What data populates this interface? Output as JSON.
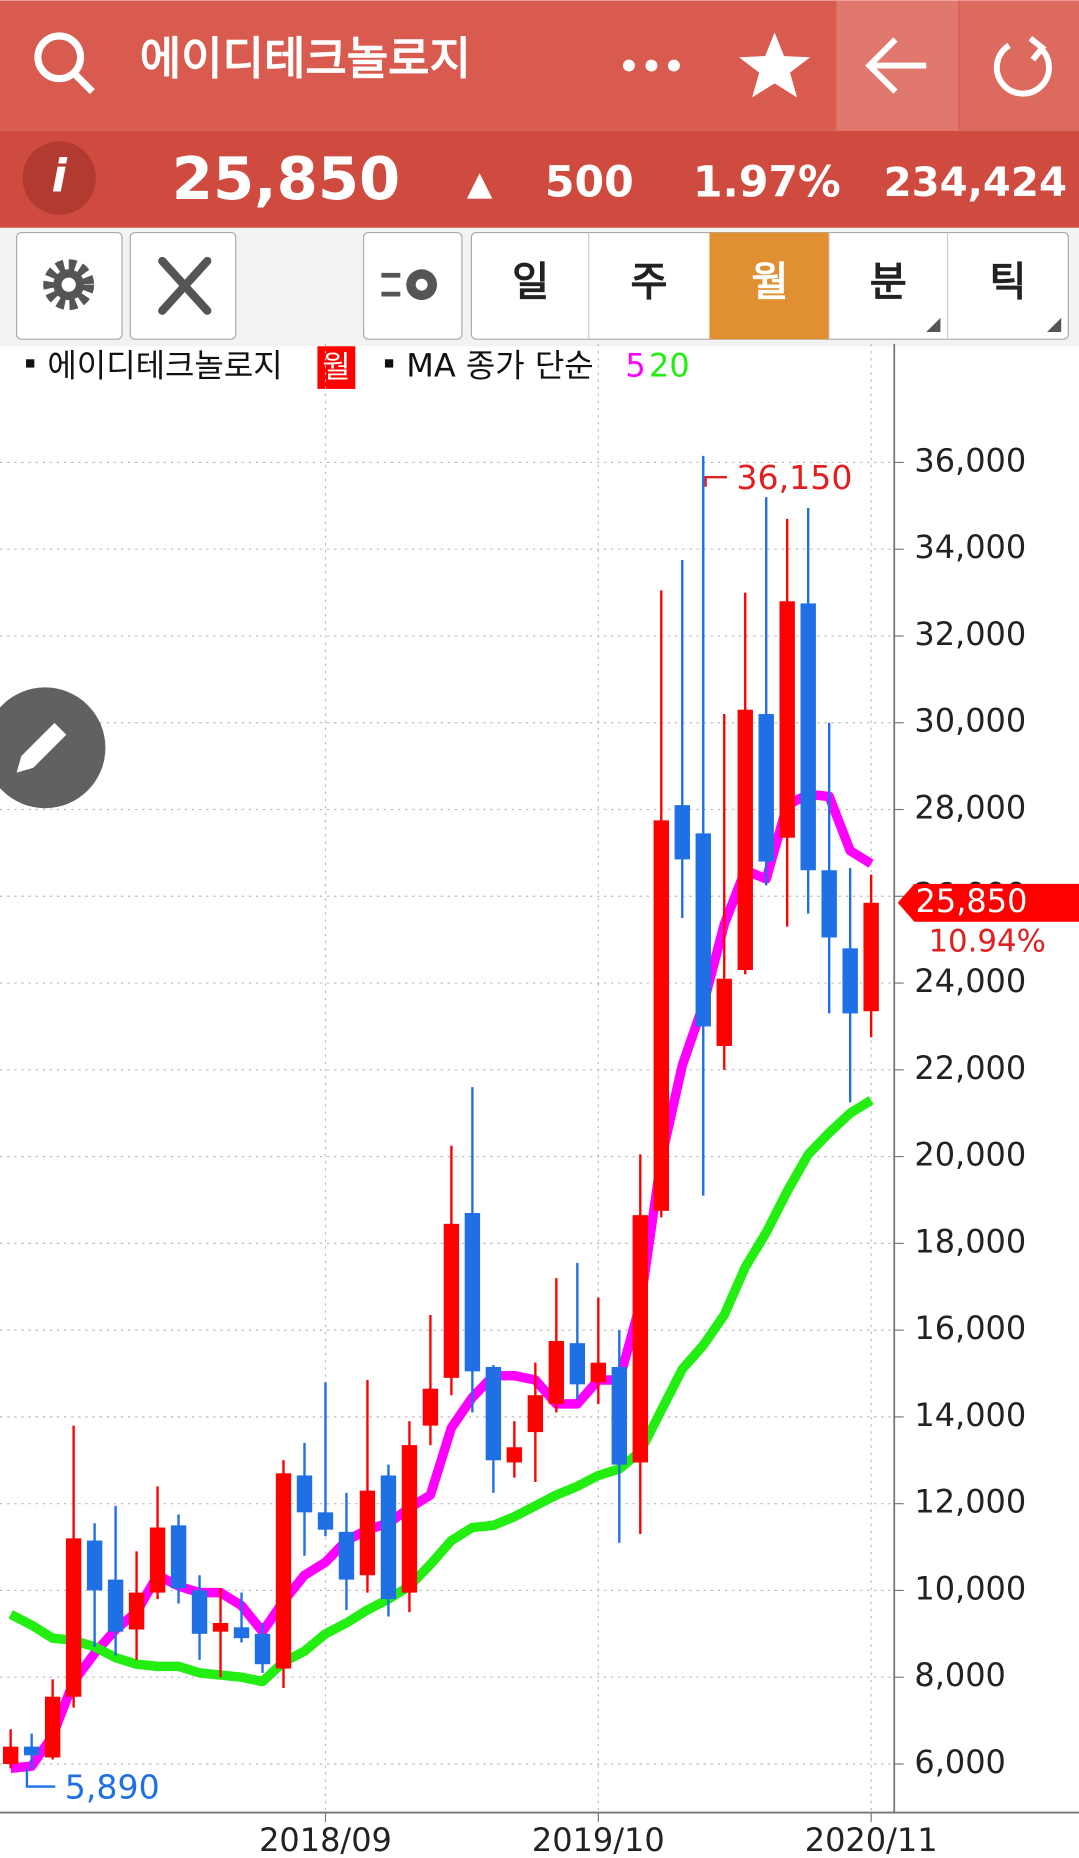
{
  "header": {
    "title": "에이디테크놀로지",
    "price": "25,850",
    "arrow": "▲",
    "change": "500",
    "change_pct": "1.97%",
    "volume": "234,424"
  },
  "tabs": [
    "일",
    "주",
    "월",
    "분",
    "틱"
  ],
  "chart_data": {
    "type": "candlestick",
    "legend_title": "에이디테크놀로지",
    "period": "월",
    "ma_label": "MA 종가 단순",
    "categories": [
      null,
      null,
      null,
      null,
      null,
      null,
      null,
      null,
      null,
      null,
      null,
      null,
      null,
      null,
      null,
      "2018/09",
      null,
      null,
      null,
      null,
      null,
      null,
      null,
      null,
      null,
      null,
      null,
      null,
      "2019/10",
      null,
      null,
      null,
      null,
      null,
      null,
      null,
      null,
      null,
      null,
      null,
      null,
      "2020/11"
    ],
    "open": [
      6000,
      6400,
      6150,
      7550,
      11150,
      10250,
      9100,
      9950,
      11500,
      10000,
      9050,
      9150,
      9000,
      8200,
      12650,
      11800,
      11350,
      10350,
      12650,
      9950,
      13800,
      14900,
      18700,
      15150,
      12950,
      13650,
      14300,
      15700,
      14800,
      15150,
      12950,
      18750,
      28100,
      27450,
      22550,
      24300,
      30200,
      27350,
      32750,
      26600,
      24800,
      23350
    ],
    "high": [
      6800,
      6700,
      7950,
      13800,
      11550,
      11950,
      10900,
      12400,
      11750,
      10350,
      10050,
      9950,
      9250,
      13000,
      13400,
      14800,
      12250,
      14850,
      12900,
      13900,
      16350,
      20250,
      21600,
      15200,
      13900,
      15250,
      17200,
      17550,
      16750,
      16000,
      20050,
      33050,
      33750,
      36150,
      30200,
      33000,
      35200,
      34700,
      34950,
      30000,
      26650,
      26500
    ],
    "low": [
      5900,
      5890,
      6100,
      7300,
      8700,
      8500,
      8400,
      9800,
      9700,
      8400,
      8000,
      8800,
      8100,
      7750,
      10800,
      11250,
      9550,
      9950,
      9400,
      9500,
      13350,
      14500,
      14100,
      12250,
      12600,
      12500,
      14100,
      14400,
      14300,
      11100,
      11300,
      18600,
      25500,
      19100,
      22000,
      24200,
      26250,
      25300,
      25600,
      23300,
      21250,
      22750
    ],
    "close": [
      6400,
      6200,
      7550,
      11200,
      10000,
      9050,
      9950,
      11450,
      10050,
      9000,
      9250,
      8900,
      8300,
      12700,
      11800,
      11400,
      10250,
      12300,
      9800,
      13350,
      14650,
      18450,
      15050,
      13000,
      13300,
      14500,
      15750,
      14750,
      15250,
      12900,
      18650,
      27750,
      26850,
      23000,
      24100,
      30300,
      26800,
      32800,
      26600,
      25050,
      23300,
      25850
    ],
    "up_color": "#ff0000",
    "down_color": "#1f6fe5",
    "series": [
      {
        "name": "5",
        "color": "#ff00ff",
        "values": [
          5900,
          5950,
          6650,
          7900,
          8550,
          9100,
          9500,
          10350,
          10100,
          9950,
          9950,
          9650,
          9050,
          9750,
          10350,
          10650,
          11150,
          11400,
          11550,
          11900,
          12200,
          13750,
          14450,
          14950,
          14950,
          14850,
          14300,
          14300,
          14850,
          14850,
          16600,
          19950,
          22100,
          23500,
          25350,
          26600,
          26400,
          28100,
          28350,
          28300,
          27050,
          26750
        ]
      },
      {
        "name": "20",
        "color": "#22ee11",
        "values": [
          9450,
          9200,
          8900,
          8850,
          8700,
          8450,
          8300,
          8250,
          8250,
          8100,
          8050,
          8000,
          7900,
          8350,
          8600,
          9000,
          9250,
          9550,
          9800,
          10100,
          10600,
          11150,
          11450,
          11500,
          11700,
          11950,
          12200,
          12400,
          12650,
          12800,
          13200,
          14150,
          15100,
          15650,
          16350,
          17450,
          18250,
          19200,
          20050,
          20550,
          21000,
          21300
        ]
      }
    ],
    "ylim": [
      4880,
      38650
    ],
    "yticks": [
      {
        "value": 6000,
        "label": "6,000"
      },
      {
        "value": 8000,
        "label": "8,000"
      },
      {
        "value": 10000,
        "label": "10,000"
      },
      {
        "value": 12000,
        "label": "12,000"
      },
      {
        "value": 14000,
        "label": "14,000"
      },
      {
        "value": 16000,
        "label": "16,000"
      },
      {
        "value": 18000,
        "label": "18,000"
      },
      {
        "value": 20000,
        "label": "20,000"
      },
      {
        "value": 22000,
        "label": "22,000"
      },
      {
        "value": 24000,
        "label": "24,000"
      },
      {
        "value": 26000,
        "label": "26,000"
      },
      {
        "value": 28000,
        "label": "28,000"
      },
      {
        "value": 30000,
        "label": "30,000"
      },
      {
        "value": 32000,
        "label": "32,000"
      },
      {
        "value": 34000,
        "label": "34,000"
      },
      {
        "value": 36000,
        "label": "36,000"
      }
    ],
    "grid": true,
    "high_marker": {
      "value": 36150,
      "label": "36,150"
    },
    "low_marker": {
      "value": 5890,
      "label": "5,890"
    },
    "last_price": {
      "value": 25850,
      "label": "25,850"
    },
    "change_label": "10.94%"
  }
}
